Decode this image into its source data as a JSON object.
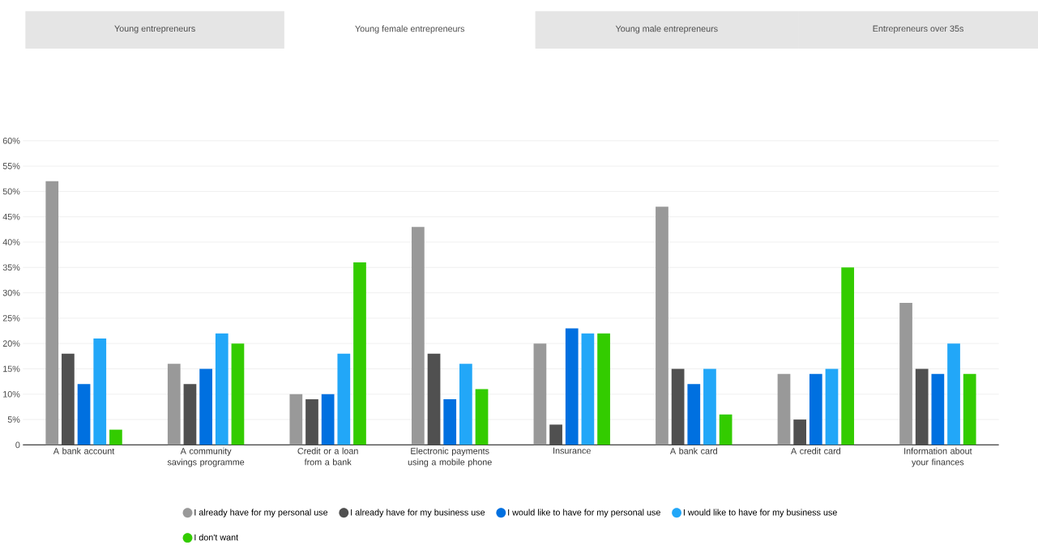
{
  "chart_data": {
    "type": "bar",
    "annotations": [
      "Young entrepreneurs",
      "Young female entrepreneurs",
      "Young male entrepreneurs",
      "Entrepreneurs over 35s"
    ],
    "categories": [
      "A bank account",
      "A community savings programme",
      "Credit or a loan from a bank",
      "Electronic payments using a mobile phone",
      "Insurance",
      "A bank card",
      "A credit card",
      "Information about your finances"
    ],
    "series": [
      {
        "name": "I already have for my personal use",
        "color": "#999999",
        "values": [
          52,
          16,
          10,
          43,
          20,
          47,
          14,
          28
        ]
      },
      {
        "name": "I already have for my business use",
        "color": "#505050",
        "values": [
          18,
          12,
          9,
          18,
          4,
          15,
          5,
          15
        ]
      },
      {
        "name": "I would like to have for my personal use",
        "color": "#0070e0",
        "values": [
          12,
          15,
          10,
          9,
          23,
          12,
          14,
          14
        ]
      },
      {
        "name": "I would like to have for my business use",
        "color": "#22a7f8",
        "values": [
          21,
          22,
          18,
          16,
          22,
          15,
          15,
          20
        ]
      },
      {
        "name": "I don't want",
        "color": "#33cc00",
        "values": [
          3,
          20,
          36,
          11,
          22,
          6,
          35,
          14
        ]
      }
    ],
    "ylim": [
      0,
      60
    ],
    "yticks": [
      {
        "value": 0,
        "label": "0"
      },
      {
        "value": 5,
        "label": "5%"
      },
      {
        "value": 10,
        "label": "10%"
      },
      {
        "value": 15,
        "label": "15%"
      },
      {
        "value": 20,
        "label": "20%"
      },
      {
        "value": 25,
        "label": "25%"
      },
      {
        "value": 30,
        "label": "30%"
      },
      {
        "value": 35,
        "label": "35%"
      },
      {
        "value": 40,
        "label": "40%"
      },
      {
        "value": 45,
        "label": "45%"
      },
      {
        "value": 50,
        "label": "50%"
      },
      {
        "value": 55,
        "label": "55%"
      },
      {
        "value": 60,
        "label": "60%"
      }
    ],
    "grid": "y",
    "legend": "bottom",
    "marker": "circle"
  }
}
